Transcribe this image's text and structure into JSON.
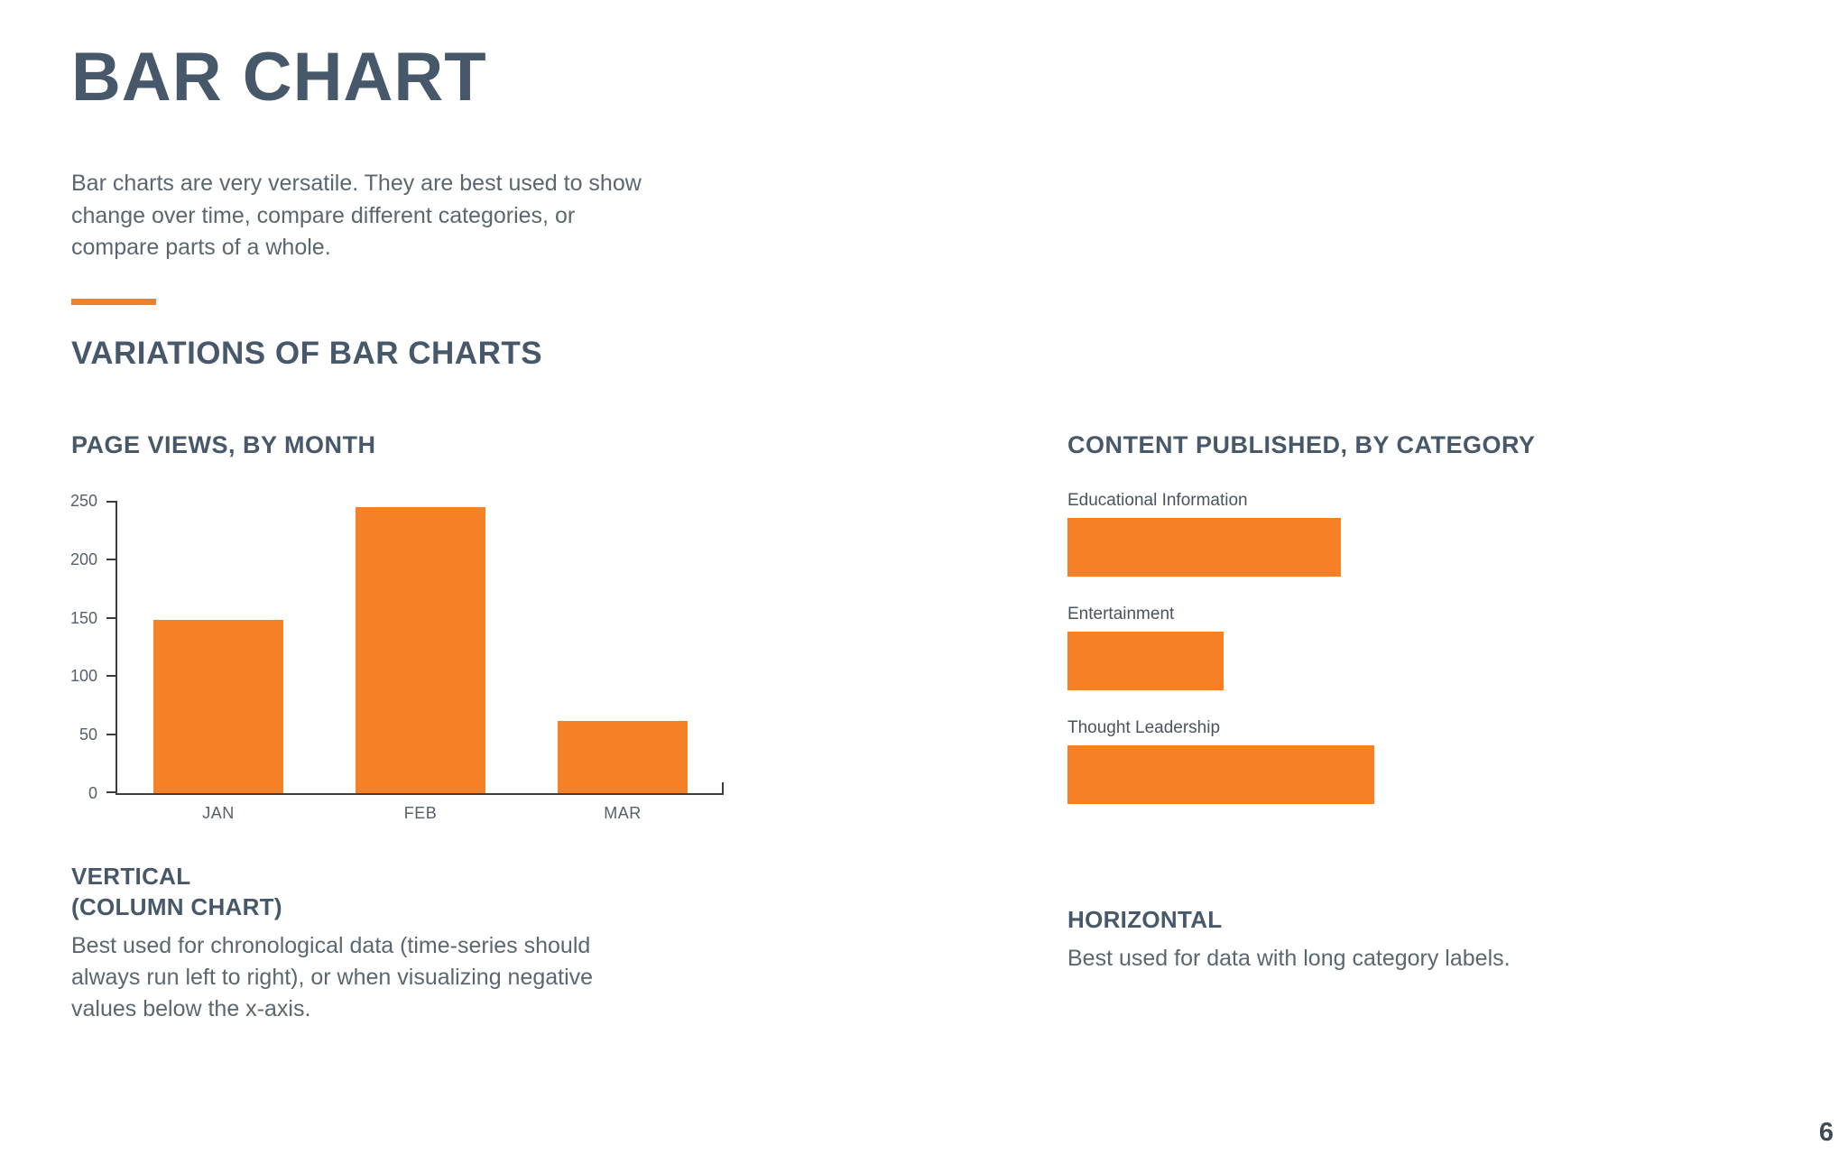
{
  "page": {
    "title": "BAR CHART",
    "intro": "Bar charts are very versatile. They are best used to show change over time, compare different categories, or compare parts of a whole.",
    "section_heading": "VARIATIONS OF BAR CHARTS",
    "page_number": "6",
    "accent_color": "#f58025",
    "heading_color": "#46586a"
  },
  "left_caption": {
    "title_line1": "VERTICAL",
    "title_line2": "(COLUMN CHART)",
    "body": "Best used for chronological data (time-series should always run left to right), or when visualizing negative values below the x-axis."
  },
  "right_caption": {
    "title": "HORIZONTAL",
    "body": "Best used for data with long category labels."
  },
  "chart_data": [
    {
      "type": "bar",
      "orientation": "vertical",
      "title": "PAGE VIEWS, BY MONTH",
      "categories": [
        "JAN",
        "FEB",
        "MAR"
      ],
      "values": [
        148,
        245,
        62
      ],
      "ylim": [
        0,
        250
      ],
      "yticks": [
        0,
        50,
        100,
        150,
        200,
        250
      ],
      "bar_color": "#f58025",
      "grid": false,
      "legend": "none"
    },
    {
      "type": "bar",
      "orientation": "horizontal",
      "title": "CONTENT PUBLISHED, BY CATEGORY",
      "categories": [
        "Educational Information",
        "Entertainment",
        "Thought Leadership"
      ],
      "values": [
        89,
        51,
        100
      ],
      "xlim": [
        0,
        100
      ],
      "bar_color": "#f58025",
      "grid": false,
      "legend": "none"
    }
  ]
}
